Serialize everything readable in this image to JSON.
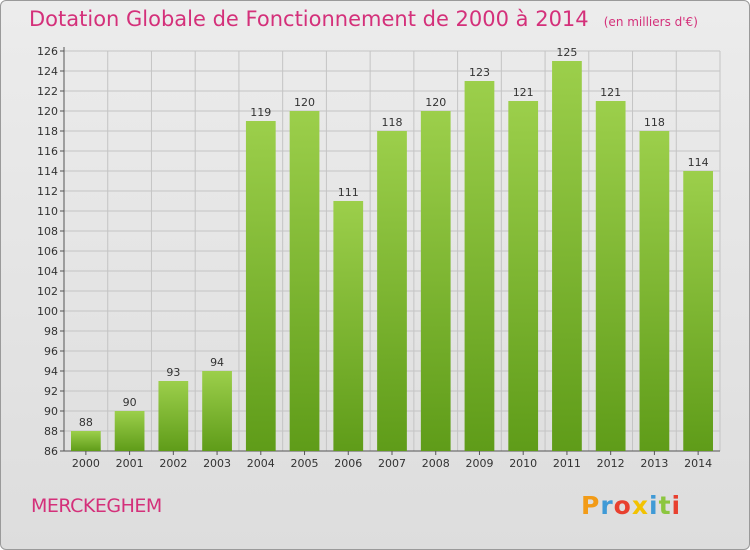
{
  "header": {
    "title": "Dotation Globale de Fonctionnement de 2000 à 2014",
    "unit": "(en milliers d'€)"
  },
  "footer": {
    "commune": "MERCKEGHEM",
    "logo": "Proxiti"
  },
  "colors": {
    "title": "#d4307a",
    "bar_top": "#9ccf4b",
    "bar_bottom": "#5f9c19",
    "logo_letters": [
      "#f29b17",
      "#3f9ad6",
      "#e8402f",
      "#f2c200",
      "#3f9ad6",
      "#8cc63f",
      "#e8402f"
    ]
  },
  "chart_data": {
    "type": "bar",
    "title": "Dotation Globale de Fonctionnement de 2000 à 2014",
    "xlabel": "",
    "ylabel": "",
    "categories": [
      "2000",
      "2001",
      "2002",
      "2003",
      "2004",
      "2005",
      "2006",
      "2007",
      "2008",
      "2009",
      "2010",
      "2011",
      "2012",
      "2013",
      "2014"
    ],
    "values": [
      88,
      90,
      93,
      94,
      119,
      120,
      111,
      118,
      120,
      123,
      121,
      125,
      121,
      118,
      114
    ],
    "ylim": [
      86,
      126
    ],
    "ytick_step": 2,
    "grid": true,
    "legend": "none"
  }
}
